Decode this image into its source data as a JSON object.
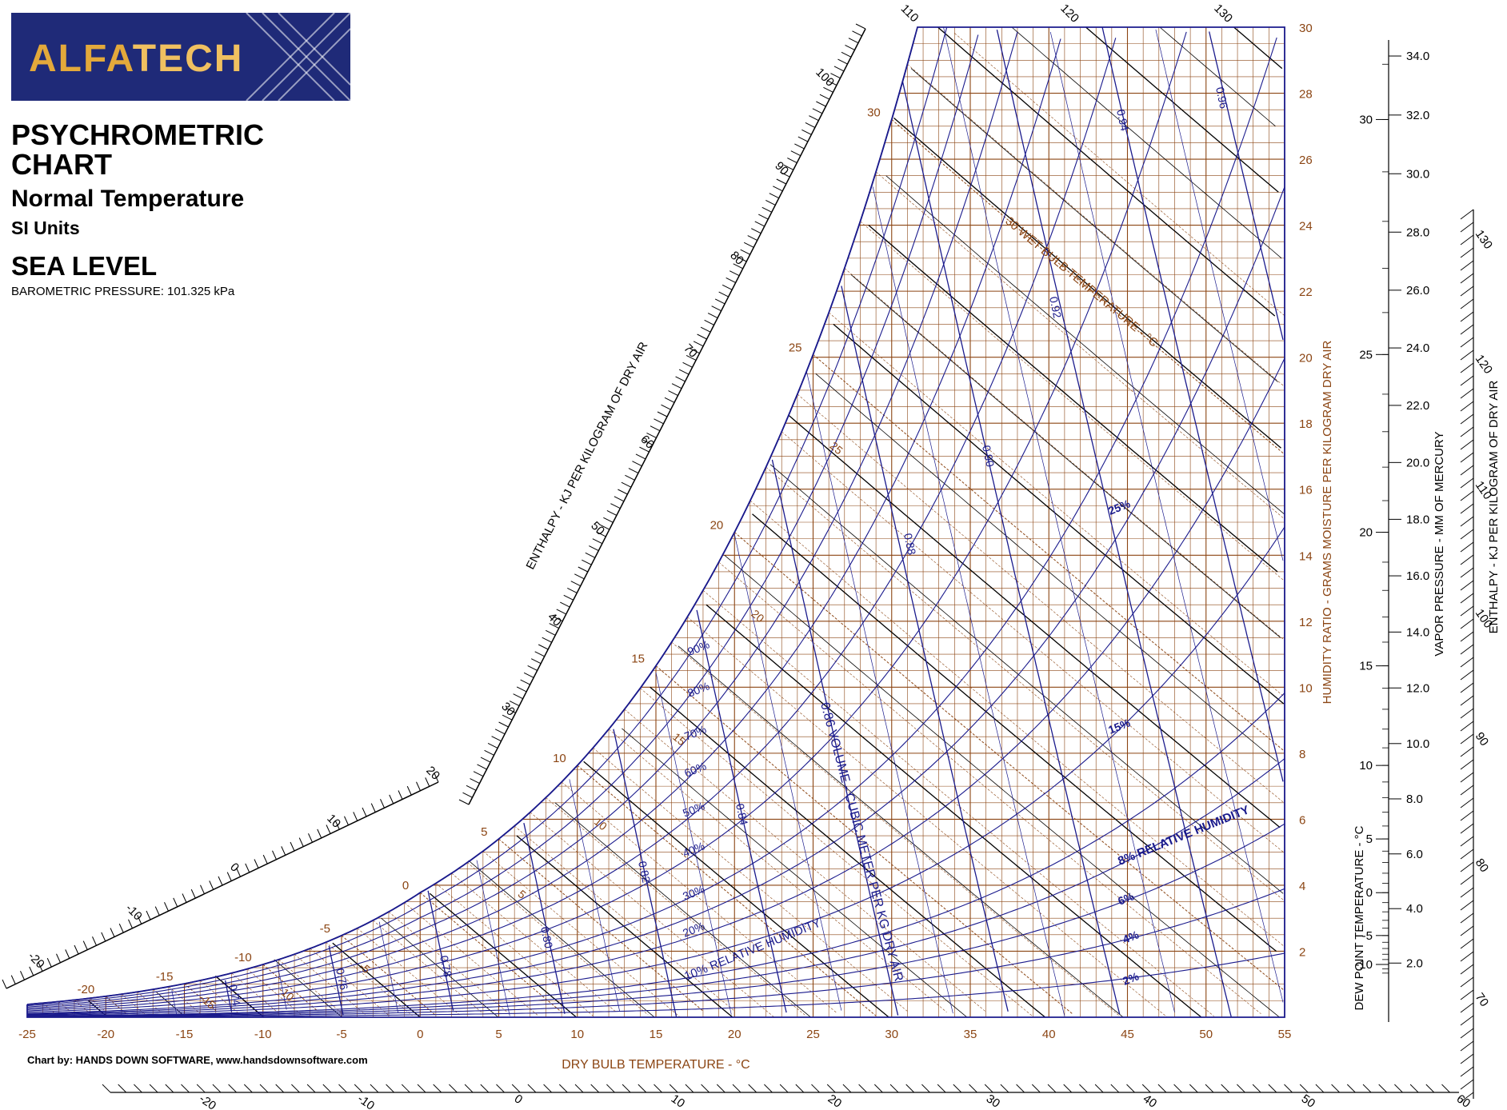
{
  "logo": {
    "part1": "ALFA",
    "part2": "TECH"
  },
  "title": {
    "line1": "PSYCHROMETRIC CHART",
    "line2": "Normal Temperature",
    "line3": "SI Units",
    "line4": "SEA LEVEL",
    "line5": "BAROMETRIC PRESSURE: 101.325 kPa"
  },
  "credit": "Chart by: HANDS DOWN SOFTWARE, www.handsdownsoftware.com",
  "colors": {
    "brown": "#8B4513",
    "blue": "#1A1A8C",
    "black": "#000000",
    "logo_bg": "#1F2A78",
    "logo_gold": "#E3A93B"
  },
  "chart_data": {
    "type": "line",
    "xlabel": "DRY BULB TEMPERATURE - °C",
    "ylabel": "HUMIDITY RATIO - GRAMS MOISTURE PER KILOGRAM DRY AIR",
    "xlim": [
      -25,
      55
    ],
    "ylim": [
      0,
      30
    ],
    "x_ticks": [
      -25,
      -20,
      -15,
      -10,
      -5,
      0,
      5,
      10,
      15,
      20,
      25,
      30,
      35,
      40,
      45,
      50,
      55
    ],
    "y_ticks": [
      2,
      4,
      6,
      8,
      10,
      12,
      14,
      16,
      18,
      20,
      22,
      24,
      26,
      28,
      30
    ],
    "rh_curves": {
      "label": "RELATIVE HUMIDITY",
      "values_percent": [
        2,
        4,
        6,
        8,
        10,
        15,
        20,
        25,
        30,
        40,
        50,
        60,
        70,
        80,
        90,
        100
      ],
      "printed_labels": [
        "2%",
        "4%",
        "6%",
        "8% RELATIVE HUMIDITY",
        "10% RELATIVE HUMIDITY",
        "15%",
        "20%",
        "25%",
        "30%",
        "40%",
        "50%",
        "60%",
        "70%",
        "80%",
        "90%"
      ]
    },
    "volume_lines": {
      "label": "0.86 VOLUME - CUBIC METER PER KG DRY AIR",
      "values": [
        0.74,
        0.76,
        0.78,
        0.8,
        0.82,
        0.84,
        0.86,
        0.88,
        0.9,
        0.92,
        0.94,
        0.96
      ],
      "printed_labels": [
        "0.74",
        "0.76",
        "0.78",
        "0.80",
        "0.82",
        "0.84",
        "0.88",
        "0.90",
        "0.92",
        "0.94",
        "0.96"
      ]
    },
    "wet_bulb_lines": {
      "label": "30 WET BULB TEMPERATURE - °C",
      "values": [
        -20,
        -15,
        -10,
        -5,
        0,
        5,
        10,
        15,
        20,
        25,
        30
      ],
      "saturation_labels": [
        "-20",
        "-15",
        "-10",
        "-5",
        "0",
        "5",
        "10",
        "15",
        "20",
        "25",
        "30"
      ],
      "inner_labels": [
        "-15",
        "-10",
        "-5",
        "5",
        "10",
        "15",
        "20",
        "25"
      ]
    },
    "enthalpy_scale": {
      "label": "ENTHALPY - KJ PER KILOGRAM OF DRY AIR",
      "values": [
        -20,
        -10,
        0,
        10,
        20,
        30,
        40,
        50,
        60,
        70,
        80,
        90,
        100,
        110,
        120,
        130
      ]
    },
    "bottom_enthalpy_scale": {
      "values": [
        -20,
        -10,
        0,
        10,
        20,
        30,
        40,
        50,
        60
      ]
    },
    "right_enthalpy_scale": {
      "label": "ENTHALPY - KJ PER KILOGRAM OF DRY AIR",
      "values": [
        70,
        80,
        90,
        100,
        110,
        120,
        130
      ]
    },
    "dew_point_scale": {
      "label": "DEW POINT TEMPERATURE - °C",
      "values": [
        -10,
        -5,
        0,
        5,
        10,
        15,
        20,
        25,
        30
      ]
    },
    "vapor_pressure_scale": {
      "label": "VAPOR PRESSURE - MM OF MERCURY",
      "values": [
        "2.0",
        "4.0",
        "6.0",
        "8.0",
        "10.0",
        "12.0",
        "14.0",
        "16.0",
        "18.0",
        "20.0",
        "22.0",
        "24.0",
        "26.0",
        "28.0",
        "30.0",
        "32.0",
        "34.0"
      ]
    }
  }
}
